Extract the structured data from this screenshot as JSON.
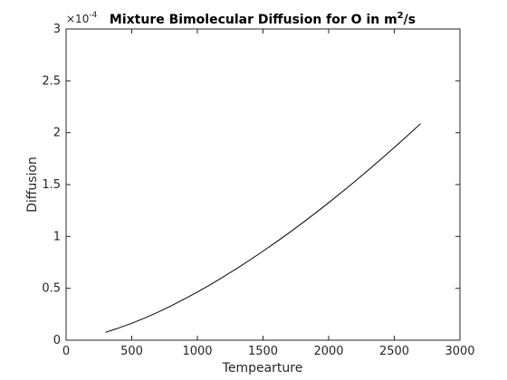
{
  "chart_data": {
    "type": "line",
    "title_main": "Mixture Bimolecular Diffusion for O in m",
    "title_sup": "2",
    "title_tail": "/s",
    "xlabel": "Tempearture",
    "ylabel": "Diffusion",
    "xlim": [
      0,
      3000
    ],
    "ylim": [
      0,
      3
    ],
    "y_multiplier_base": "×10",
    "y_multiplier_exp": "-4",
    "x_ticks": [
      0,
      500,
      1000,
      1500,
      2000,
      2500,
      3000
    ],
    "x_tick_labels": [
      "0",
      "500",
      "1000",
      "1500",
      "2000",
      "2500",
      "3000"
    ],
    "y_ticks": [
      0,
      0.5,
      1,
      1.5,
      2,
      2.5,
      3
    ],
    "y_tick_labels": [
      "0",
      "0.5",
      "1",
      "1.5",
      "2",
      "2.5",
      "3"
    ],
    "grid": false,
    "line_color": "#000000",
    "series": [
      {
        "x": [
          300,
          400,
          500,
          600,
          700,
          800,
          900,
          1000,
          1100,
          1200,
          1300,
          1400,
          1500,
          1600,
          1700,
          1800,
          1900,
          2000,
          2100,
          2200,
          2300,
          2400,
          2500,
          2600,
          2700
        ],
        "values": [
          0.076,
          0.117,
          0.163,
          0.214,
          0.27,
          0.331,
          0.396,
          0.464,
          0.536,
          0.612,
          0.691,
          0.773,
          0.858,
          0.946,
          1.036,
          1.13,
          1.226,
          1.325,
          1.427,
          1.531,
          1.637,
          1.746,
          1.857,
          1.971,
          2.087
        ]
      }
    ]
  }
}
